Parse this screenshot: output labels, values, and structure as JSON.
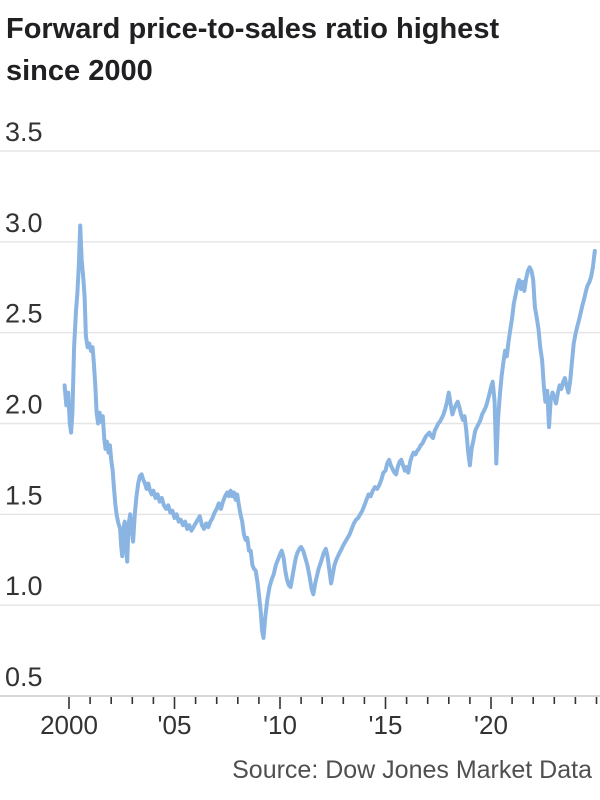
{
  "title": {
    "line1": "Forward price-to-sales ratio highest",
    "line2": "since 2000"
  },
  "source": "Source: Dow Jones Market Data",
  "colors": {
    "line": "#8ab5e2",
    "grid": "#e6e6e6",
    "axis": "#cfcfcf",
    "tick": "#333333",
    "label": "#333333",
    "title": "#202023",
    "source": "#4f4f4f",
    "background": "#ffffff"
  },
  "chart_data": {
    "type": "line",
    "title": "Forward price-to-sales ratio highest since 2000",
    "xlabel": "",
    "ylabel": "",
    "x_axis": {
      "labeled_ticks": [
        "2000",
        "'05",
        "'10",
        "'15",
        "'20"
      ],
      "labeled_tick_years": [
        2000,
        2005,
        2010,
        2015,
        2020
      ],
      "minor_tick_years_start": 2000,
      "minor_tick_years_end": 2025,
      "range": [
        1999.75,
        2025.3
      ]
    },
    "y_axis": {
      "tick_labels": [
        "3.5",
        "3.0",
        "2.5",
        "2.0",
        "1.5",
        "1.0",
        "0.5"
      ],
      "tick_values": [
        3.5,
        3.0,
        2.5,
        2.0,
        1.5,
        1.0,
        0.5
      ],
      "range": [
        0.5,
        3.5
      ],
      "gridlines": true
    },
    "legend": "none",
    "series": [
      {
        "name": "Forward price-to-sales ratio",
        "x": [
          1999.79,
          1999.87,
          1999.96,
          2000.04,
          2000.1,
          2000.16,
          2000.24,
          2000.33,
          2000.4,
          2000.47,
          2000.53,
          2000.6,
          2000.68,
          2000.74,
          2000.8,
          2000.88,
          2000.96,
          2001.04,
          2001.12,
          2001.18,
          2001.25,
          2001.31,
          2001.38,
          2001.45,
          2001.52,
          2001.6,
          2001.67,
          2001.73,
          2001.8,
          2001.87,
          2001.94,
          2002.0,
          2002.07,
          2002.13,
          2002.2,
          2002.27,
          2002.34,
          2002.42,
          2002.47,
          2002.52,
          2002.58,
          2002.64,
          2002.7,
          2002.76,
          2002.83,
          2002.9,
          2002.97,
          2003.04,
          2003.12,
          2003.2,
          2003.28,
          2003.36,
          2003.44,
          2003.52,
          2003.6,
          2003.68,
          2003.76,
          2003.84,
          2003.92,
          2004.0,
          2004.1,
          2004.2,
          2004.3,
          2004.4,
          2004.5,
          2004.6,
          2004.7,
          2004.8,
          2004.9,
          2005.0,
          2005.1,
          2005.2,
          2005.3,
          2005.4,
          2005.5,
          2005.6,
          2005.7,
          2005.8,
          2005.9,
          2006.0,
          2006.1,
          2006.2,
          2006.3,
          2006.4,
          2006.5,
          2006.6,
          2006.7,
          2006.8,
          2006.9,
          2007.0,
          2007.1,
          2007.2,
          2007.3,
          2007.4,
          2007.5,
          2007.58,
          2007.66,
          2007.74,
          2007.82,
          2007.9,
          2007.97,
          2008.05,
          2008.13,
          2008.21,
          2008.29,
          2008.37,
          2008.45,
          2008.53,
          2008.61,
          2008.69,
          2008.77,
          2008.85,
          2008.93,
          2009.01,
          2009.09,
          2009.15,
          2009.22,
          2009.3,
          2009.4,
          2009.5,
          2009.6,
          2009.7,
          2009.8,
          2009.9,
          2010.0,
          2010.08,
          2010.17,
          2010.25,
          2010.33,
          2010.42,
          2010.5,
          2010.58,
          2010.67,
          2010.75,
          2010.83,
          2010.92,
          2011.0,
          2011.1,
          2011.2,
          2011.3,
          2011.4,
          2011.5,
          2011.58,
          2011.67,
          2011.75,
          2011.83,
          2011.92,
          2012.0,
          2012.08,
          2012.17,
          2012.25,
          2012.33,
          2012.42,
          2012.5,
          2012.58,
          2012.67,
          2012.75,
          2012.83,
          2012.92,
          2013.0,
          2013.1,
          2013.2,
          2013.3,
          2013.4,
          2013.5,
          2013.6,
          2013.7,
          2013.8,
          2013.9,
          2014.0,
          2014.1,
          2014.2,
          2014.3,
          2014.4,
          2014.5,
          2014.6,
          2014.7,
          2014.8,
          2014.9,
          2015.0,
          2015.08,
          2015.17,
          2015.25,
          2015.33,
          2015.42,
          2015.5,
          2015.58,
          2015.67,
          2015.75,
          2015.83,
          2015.92,
          2016.0,
          2016.08,
          2016.17,
          2016.25,
          2016.33,
          2016.42,
          2016.5,
          2016.58,
          2016.67,
          2016.75,
          2016.83,
          2016.92,
          2017.0,
          2017.08,
          2017.17,
          2017.25,
          2017.33,
          2017.42,
          2017.5,
          2017.58,
          2017.67,
          2017.75,
          2017.83,
          2017.92,
          2018.0,
          2018.08,
          2018.17,
          2018.25,
          2018.33,
          2018.42,
          2018.5,
          2018.58,
          2018.67,
          2018.75,
          2018.83,
          2018.92,
          2019.0,
          2019.08,
          2019.17,
          2019.25,
          2019.33,
          2019.42,
          2019.5,
          2019.58,
          2019.67,
          2019.75,
          2019.83,
          2019.92,
          2020.0,
          2020.08,
          2020.17,
          2020.25,
          2020.33,
          2020.42,
          2020.5,
          2020.58,
          2020.67,
          2020.75,
          2020.83,
          2020.92,
          2021.0,
          2021.08,
          2021.17,
          2021.25,
          2021.33,
          2021.42,
          2021.5,
          2021.58,
          2021.67,
          2021.75,
          2021.83,
          2021.92,
          2022.0,
          2022.08,
          2022.17,
          2022.25,
          2022.33,
          2022.42,
          2022.5,
          2022.58,
          2022.67,
          2022.75,
          2022.83,
          2022.92,
          2023.0,
          2023.08,
          2023.17,
          2023.25,
          2023.33,
          2023.42,
          2023.5,
          2023.58,
          2023.67,
          2023.75,
          2023.83,
          2023.92,
          2024.0,
          2024.08,
          2024.17,
          2024.25,
          2024.33,
          2024.42,
          2024.5,
          2024.58,
          2024.67,
          2024.75,
          2024.83,
          2024.92
        ],
        "values": [
          2.21,
          2.1,
          2.17,
          2.0,
          1.95,
          2.06,
          2.42,
          2.62,
          2.72,
          2.88,
          3.09,
          2.9,
          2.8,
          2.7,
          2.48,
          2.42,
          2.44,
          2.4,
          2.42,
          2.33,
          2.2,
          2.06,
          2.0,
          2.06,
          2.01,
          2.04,
          1.92,
          1.86,
          1.9,
          1.84,
          1.88,
          1.8,
          1.74,
          1.65,
          1.55,
          1.49,
          1.45,
          1.42,
          1.33,
          1.27,
          1.42,
          1.46,
          1.31,
          1.24,
          1.45,
          1.5,
          1.42,
          1.35,
          1.5,
          1.6,
          1.67,
          1.71,
          1.72,
          1.69,
          1.67,
          1.64,
          1.67,
          1.63,
          1.61,
          1.63,
          1.59,
          1.61,
          1.57,
          1.59,
          1.55,
          1.53,
          1.55,
          1.51,
          1.52,
          1.48,
          1.5,
          1.46,
          1.47,
          1.44,
          1.46,
          1.42,
          1.44,
          1.41,
          1.43,
          1.45,
          1.47,
          1.49,
          1.44,
          1.42,
          1.45,
          1.43,
          1.46,
          1.48,
          1.51,
          1.53,
          1.56,
          1.53,
          1.57,
          1.6,
          1.62,
          1.6,
          1.63,
          1.6,
          1.62,
          1.58,
          1.61,
          1.55,
          1.5,
          1.46,
          1.39,
          1.36,
          1.37,
          1.3,
          1.3,
          1.22,
          1.2,
          1.19,
          1.13,
          1.05,
          0.96,
          0.86,
          0.82,
          0.93,
          1.03,
          1.1,
          1.14,
          1.17,
          1.22,
          1.25,
          1.28,
          1.3,
          1.26,
          1.19,
          1.14,
          1.11,
          1.1,
          1.15,
          1.21,
          1.26,
          1.29,
          1.31,
          1.32,
          1.3,
          1.26,
          1.22,
          1.16,
          1.09,
          1.06,
          1.12,
          1.16,
          1.2,
          1.23,
          1.26,
          1.29,
          1.31,
          1.27,
          1.2,
          1.12,
          1.17,
          1.22,
          1.25,
          1.27,
          1.29,
          1.31,
          1.33,
          1.35,
          1.37,
          1.39,
          1.42,
          1.45,
          1.47,
          1.48,
          1.5,
          1.52,
          1.55,
          1.58,
          1.61,
          1.6,
          1.63,
          1.65,
          1.64,
          1.66,
          1.69,
          1.73,
          1.74,
          1.78,
          1.8,
          1.77,
          1.75,
          1.73,
          1.72,
          1.76,
          1.79,
          1.8,
          1.77,
          1.74,
          1.76,
          1.73,
          1.79,
          1.82,
          1.84,
          1.83,
          1.85,
          1.86,
          1.88,
          1.89,
          1.91,
          1.93,
          1.94,
          1.95,
          1.93,
          1.92,
          1.96,
          1.98,
          2.0,
          2.01,
          2.03,
          2.05,
          2.08,
          2.12,
          2.17,
          2.11,
          2.05,
          2.08,
          2.1,
          2.12,
          2.09,
          2.05,
          2.02,
          2.04,
          1.96,
          1.84,
          1.77,
          1.86,
          1.91,
          1.96,
          1.98,
          2.0,
          2.02,
          2.05,
          2.07,
          2.09,
          2.12,
          2.16,
          2.2,
          2.23,
          2.12,
          1.78,
          2.02,
          2.16,
          2.26,
          2.33,
          2.4,
          2.37,
          2.45,
          2.52,
          2.58,
          2.66,
          2.71,
          2.76,
          2.79,
          2.74,
          2.78,
          2.73,
          2.8,
          2.84,
          2.86,
          2.84,
          2.79,
          2.64,
          2.58,
          2.52,
          2.42,
          2.35,
          2.21,
          2.12,
          2.18,
          1.98,
          2.13,
          2.17,
          2.14,
          2.11,
          2.17,
          2.21,
          2.19,
          2.23,
          2.25,
          2.21,
          2.17,
          2.23,
          2.33,
          2.44,
          2.49,
          2.53,
          2.57,
          2.61,
          2.65,
          2.69,
          2.73,
          2.76,
          2.78,
          2.81,
          2.86,
          2.95
        ]
      }
    ]
  }
}
